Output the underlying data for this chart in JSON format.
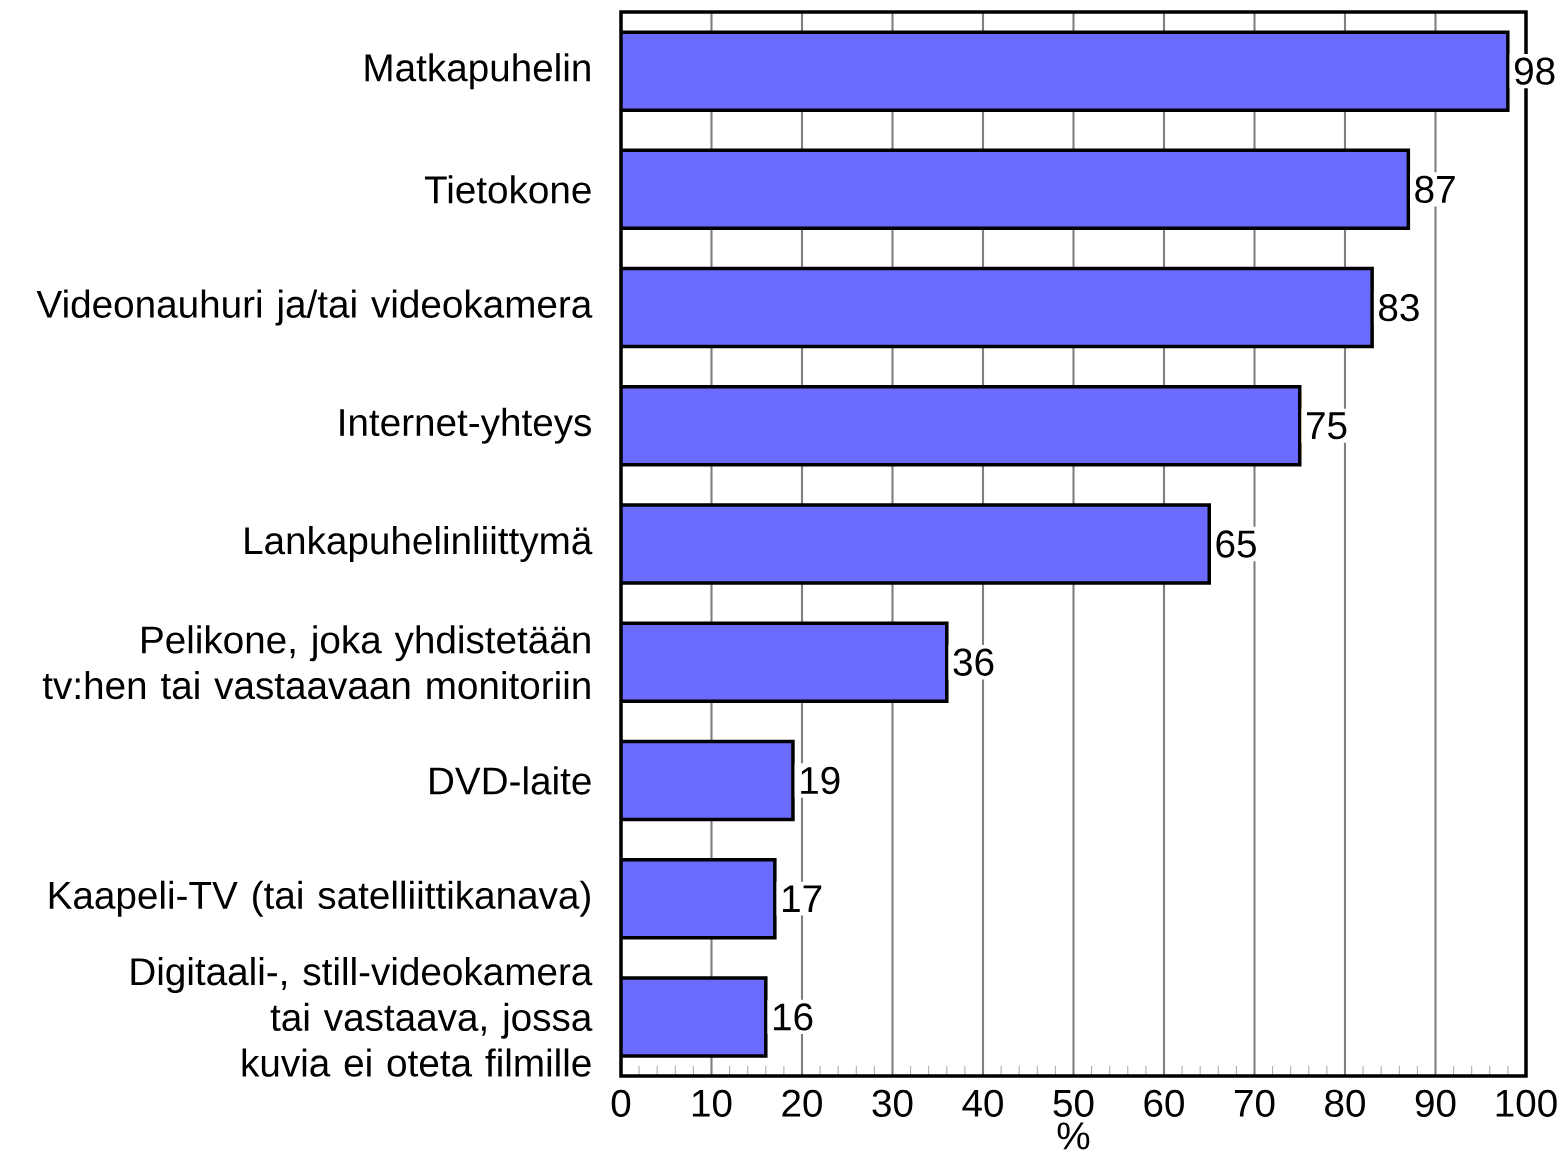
{
  "chart_data": {
    "type": "bar",
    "orientation": "horizontal",
    "xlabel": "%",
    "categories": [
      "Matkapuhelin",
      "Tietokone",
      "Videonauhuri ja/tai videokamera",
      "Internet-yhteys",
      "Lankapuhelinliittymä",
      "Pelikone, joka yhdistetään tv:hen tai vastaavaan monitoriin",
      "DVD-laite",
      "Kaapeli-TV (tai satelliittikanava)",
      "Digitaali-, still-videokamera tai vastaava, jossa kuvia ei oteta filmille"
    ],
    "values": [
      98,
      87,
      83,
      75,
      65,
      36,
      19,
      17,
      16
    ],
    "color": "#6b6bff",
    "xlim": [
      0,
      100
    ],
    "xticks": [
      0,
      10,
      20,
      30,
      40,
      50,
      60,
      70,
      80,
      90,
      100
    ],
    "grid": "x",
    "data_labels": true
  }
}
